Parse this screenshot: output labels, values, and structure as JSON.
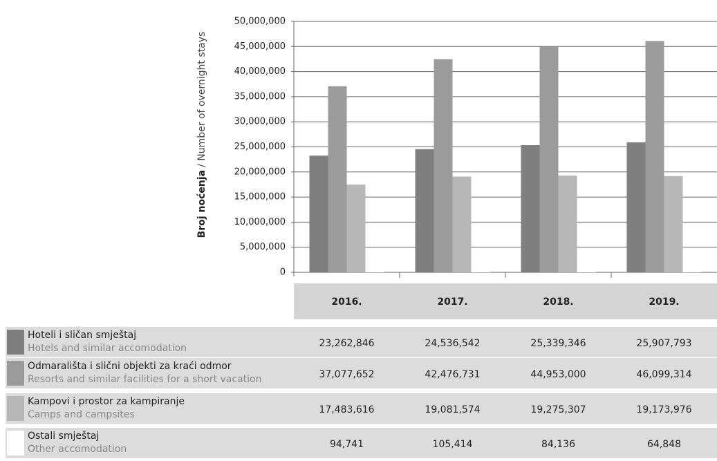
{
  "chart_data": {
    "type": "bar",
    "ylabel": "Broj noćenja",
    "ylabel_en": "/ Number of overnight stays",
    "categories": [
      "2016.",
      "2017.",
      "2018.",
      "2019."
    ],
    "ylim": [
      0,
      50000000
    ],
    "yticks": [
      0,
      {
        "value": 5000000,
        "label": "5,000,000"
      },
      {
        "value": 10000000,
        "label": "10,000,000"
      },
      {
        "value": 15000000,
        "label": "15,000,000"
      },
      {
        "value": 20000000,
        "label": "20,000,000"
      },
      {
        "value": 25000000,
        "label": "25,000,000"
      },
      {
        "value": 30000000,
        "label": "30,000,000"
      },
      {
        "value": 35000000,
        "label": "35,000,000"
      },
      {
        "value": 40000000,
        "label": "40,000,000"
      },
      {
        "value": 45000000,
        "label": "45,000,000"
      },
      {
        "value": 50000000,
        "label": "50,000,000"
      }
    ],
    "grid": true,
    "series": [
      {
        "name": "Hoteli i sličan smještaj",
        "name_en": "Hotels and similar accomodation",
        "color": "#7f7f7f",
        "values": [
          23262846,
          24536542,
          25339346,
          25907793
        ],
        "value_labels": [
          "23,262,846",
          "24,536,542",
          "25,339,346",
          "25,907,793"
        ]
      },
      {
        "name": "Odmarališta i slični objekti za kraći odmor",
        "name_en": "Resorts and similar facilities for a short vacation",
        "color": "#9b9b9b",
        "values": [
          37077652,
          42476731,
          44953000,
          46099314
        ],
        "value_labels": [
          "37,077,652",
          "42,476,731",
          "44,953,000",
          "46,099,314"
        ]
      },
      {
        "name": "Kampovi i prostor za kampiranje",
        "name_en": "Camps and campsites",
        "color": "#b7b7b7",
        "values": [
          17483616,
          19081574,
          19275307,
          19173976
        ],
        "value_labels": [
          "17,483,616",
          "19,081,574",
          "19,275,307",
          "19,173,976"
        ]
      },
      {
        "name": "Ostali smještaj",
        "name_en": "Other accomodation",
        "color": "#ffffff",
        "values": [
          94741,
          105414,
          84136,
          64848
        ],
        "value_labels": [
          "94,741",
          "105,414",
          "84,136",
          "64,848"
        ]
      }
    ]
  }
}
